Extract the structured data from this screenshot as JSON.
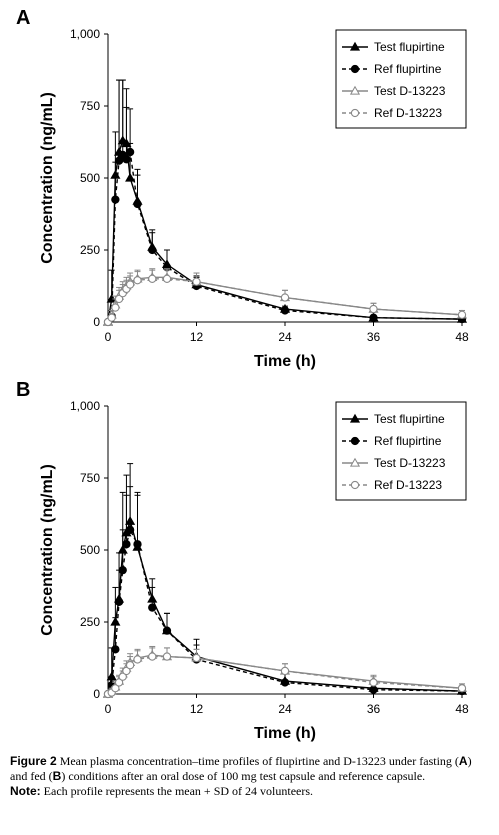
{
  "chart_data": [
    {
      "type": "line",
      "panel_label": "A",
      "xlabel": "Time (h)",
      "ylabel": "Concentration (ng/mL)",
      "xlim": [
        0,
        48
      ],
      "ylim": [
        0,
        1000
      ],
      "xticks": [
        "0",
        "12",
        "24",
        "36",
        "48"
      ],
      "yticks": [
        "0",
        "250",
        "500",
        "750",
        "1,000"
      ],
      "legend_position": "top-right",
      "series": [
        {
          "name": "Test flupirtine",
          "marker": "triangle",
          "dash": "solid",
          "color": "#000000",
          "x": [
            0,
            0.5,
            1,
            1.5,
            2,
            2.5,
            3,
            4,
            6,
            8,
            12,
            24,
            36,
            48
          ],
          "y": [
            0,
            80,
            510,
            590,
            630,
            620,
            500,
            420,
            260,
            200,
            130,
            45,
            15,
            10
          ],
          "sd": [
            0,
            100,
            150,
            250,
            210,
            190,
            120,
            110,
            60,
            50,
            30,
            10,
            5,
            5
          ]
        },
        {
          "name": "Ref flupirtine",
          "marker": "circle",
          "dash": "dashed",
          "color": "#000000",
          "x": [
            0,
            0.5,
            1,
            1.5,
            2,
            2.5,
            3,
            4,
            6,
            8,
            12,
            24,
            36,
            48
          ],
          "y": [
            0,
            20,
            425,
            560,
            580,
            565,
            590,
            410,
            250,
            190,
            125,
            40,
            15,
            10
          ],
          "sd": [
            0,
            20,
            130,
            280,
            260,
            180,
            150,
            100,
            60,
            60,
            30,
            10,
            5,
            5
          ]
        },
        {
          "name": "Test D-13223",
          "marker": "triangle-open",
          "dash": "solid",
          "color": "#888888",
          "x": [
            0,
            0.5,
            1,
            1.5,
            2,
            2.5,
            3,
            4,
            6,
            8,
            12,
            24,
            36,
            48
          ],
          "y": [
            0,
            25,
            60,
            90,
            110,
            125,
            140,
            150,
            155,
            155,
            140,
            85,
            45,
            25
          ],
          "sd": [
            0,
            15,
            30,
            30,
            30,
            30,
            30,
            30,
            30,
            30,
            30,
            25,
            20,
            15
          ]
        },
        {
          "name": "Ref D-13223",
          "marker": "circle-open",
          "dash": "dashed",
          "color": "#888888",
          "x": [
            0,
            0.5,
            1,
            1.5,
            2,
            2.5,
            3,
            4,
            6,
            8,
            12,
            24,
            36,
            48
          ],
          "y": [
            0,
            15,
            50,
            80,
            100,
            115,
            130,
            145,
            150,
            150,
            140,
            85,
            45,
            25
          ],
          "sd": [
            0,
            15,
            30,
            30,
            30,
            30,
            30,
            30,
            30,
            30,
            30,
            25,
            20,
            15
          ]
        }
      ]
    },
    {
      "type": "line",
      "panel_label": "B",
      "xlabel": "Time (h)",
      "ylabel": "Concentration (ng/mL)",
      "xlim": [
        0,
        48
      ],
      "ylim": [
        0,
        1000
      ],
      "xticks": [
        "0",
        "12",
        "24",
        "36",
        "48"
      ],
      "yticks": [
        "0",
        "250",
        "500",
        "750",
        "1,000"
      ],
      "legend_position": "top-right",
      "series": [
        {
          "name": "Test flupirtine",
          "marker": "triangle",
          "dash": "solid",
          "color": "#000000",
          "x": [
            0,
            0.5,
            1,
            1.5,
            2,
            2.5,
            3,
            4,
            6,
            8,
            12,
            24,
            36,
            48
          ],
          "y": [
            0,
            60,
            250,
            330,
            500,
            560,
            600,
            510,
            330,
            220,
            130,
            45,
            20,
            10
          ],
          "sd": [
            0,
            100,
            120,
            160,
            200,
            200,
            200,
            190,
            70,
            60,
            60,
            40,
            20,
            10
          ]
        },
        {
          "name": "Ref flupirtine",
          "marker": "circle",
          "dash": "dashed",
          "color": "#000000",
          "x": [
            0,
            0.5,
            1,
            1.5,
            2,
            2.5,
            3,
            4,
            6,
            8,
            12,
            24,
            36,
            48
          ],
          "y": [
            0,
            30,
            155,
            320,
            430,
            520,
            570,
            520,
            300,
            220,
            120,
            40,
            15,
            10
          ],
          "sd": [
            0,
            30,
            110,
            110,
            140,
            170,
            150,
            170,
            70,
            60,
            50,
            30,
            20,
            10
          ]
        },
        {
          "name": "Test D-13223",
          "marker": "triangle-open",
          "dash": "solid",
          "color": "#888888",
          "x": [
            0,
            0.5,
            1,
            1.5,
            2,
            2.5,
            3,
            4,
            6,
            8,
            12,
            24,
            36,
            48
          ],
          "y": [
            0,
            10,
            25,
            45,
            70,
            90,
            110,
            125,
            135,
            130,
            125,
            80,
            45,
            20
          ],
          "sd": [
            0,
            10,
            20,
            20,
            20,
            25,
            30,
            30,
            30,
            30,
            30,
            25,
            20,
            15
          ]
        },
        {
          "name": "Ref D-13223",
          "marker": "circle-open",
          "dash": "dashed",
          "color": "#888888",
          "x": [
            0,
            0.5,
            1,
            1.5,
            2,
            2.5,
            3,
            4,
            6,
            8,
            12,
            24,
            36,
            48
          ],
          "y": [
            0,
            5,
            20,
            40,
            60,
            80,
            100,
            120,
            130,
            130,
            125,
            80,
            40,
            20
          ],
          "sd": [
            0,
            10,
            20,
            20,
            20,
            25,
            30,
            30,
            30,
            30,
            30,
            25,
            20,
            15
          ]
        }
      ]
    }
  ],
  "caption": {
    "figure_label": "Figure 2",
    "text_1": " Mean plasma concentration–time profiles of flupirtine and D-13223 under fasting (",
    "a": "A",
    "text_2": ") and fed (",
    "b": "B",
    "text_3": ") conditions after an oral dose of 100 mg test capsule and reference capsule.",
    "note_label": "Note:",
    "note_text": " Each profile represents the mean + SD of 24 volunteers."
  }
}
